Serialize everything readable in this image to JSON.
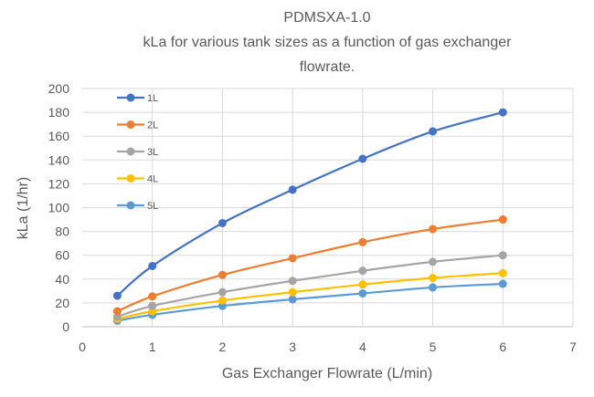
{
  "chart_data": {
    "type": "line",
    "title_lines": [
      "PDMSXA-1.0",
      "kLa for various tank sizes as a function of gas exchanger",
      "flowrate."
    ],
    "xlabel": "Gas Exchanger Flowrate (L/min)",
    "ylabel": "kLa (1/hr)",
    "xlim": [
      0,
      7
    ],
    "ylim": [
      0,
      200
    ],
    "xticks": [
      0,
      1,
      2,
      3,
      4,
      5,
      6,
      7
    ],
    "yticks": [
      0,
      20,
      40,
      60,
      80,
      100,
      120,
      140,
      160,
      180,
      200
    ],
    "grid": true,
    "smooth": true,
    "legend_position": "top-left",
    "x": [
      0.5,
      1,
      2,
      3,
      4,
      5,
      6
    ],
    "series": [
      {
        "name": "1L",
        "color": "#4472C4",
        "values": [
          26,
          51,
          87,
          115,
          141,
          164,
          180
        ]
      },
      {
        "name": "2L",
        "color": "#ED7D31",
        "values": [
          13,
          25.5,
          43.5,
          57.5,
          71,
          82,
          90
        ]
      },
      {
        "name": "3L",
        "color": "#A5A5A5",
        "values": [
          8.5,
          17.5,
          29,
          38.5,
          47,
          54.5,
          60
        ]
      },
      {
        "name": "4L",
        "color": "#FFC000",
        "values": [
          6.5,
          13,
          22,
          29,
          35.5,
          41,
          45
        ]
      },
      {
        "name": "5L",
        "color": "#5B9BD5",
        "values": [
          5,
          10,
          17.5,
          23,
          28,
          33,
          36
        ]
      }
    ]
  }
}
